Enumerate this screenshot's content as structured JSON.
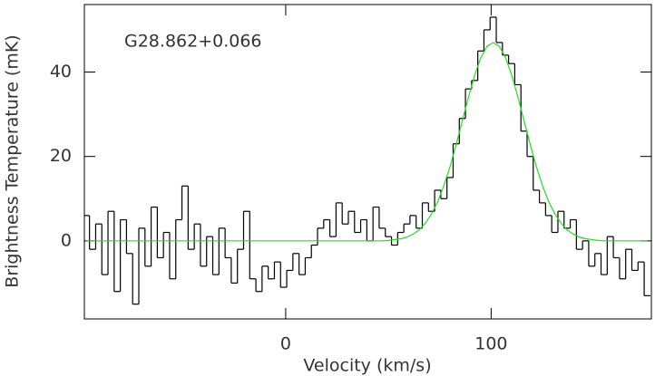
{
  "chart_data": {
    "type": "step",
    "annotation": "G28.862+0.066",
    "xlabel": "Velocity (km/s)",
    "ylabel": "Brightness Temperature (mK)",
    "x": [
      -97,
      -94,
      -91,
      -88,
      -85,
      -82,
      -79,
      -76,
      -73,
      -70,
      -67,
      -64,
      -61,
      -58,
      -55,
      -52,
      -49,
      -46,
      -43,
      -40,
      -37,
      -34,
      -31,
      -28,
      -25,
      -22,
      -19,
      -16,
      -13,
      -10,
      -7,
      -4,
      -1,
      2,
      5,
      8,
      11,
      14,
      17,
      20,
      23,
      26,
      29,
      32,
      35,
      38,
      41,
      44,
      47,
      50,
      53,
      56,
      59,
      62,
      65,
      68,
      71,
      74,
      77,
      80,
      83,
      86,
      89,
      92,
      95,
      98,
      101,
      104,
      107,
      110,
      113,
      116,
      119,
      122,
      125,
      128,
      131,
      134,
      137,
      140,
      143,
      146,
      149,
      152,
      155,
      158,
      161,
      164,
      167,
      170,
      173,
      176
    ],
    "series": [
      {
        "color": "#000000",
        "values": [
          6,
          -2,
          4,
          -8,
          7,
          -12,
          5,
          -3,
          -15,
          3,
          -6,
          8,
          -4,
          2,
          -9,
          5,
          13,
          -2,
          4,
          -6,
          1,
          -8,
          3,
          -4,
          -10,
          -2,
          7,
          -9,
          -12,
          -6,
          -9,
          -5,
          -11,
          -7,
          -3,
          -8,
          -4,
          -1,
          3,
          5,
          1,
          9,
          4,
          7,
          2,
          5,
          0,
          8,
          3,
          1,
          -1,
          2,
          4,
          6,
          3,
          9,
          7,
          12,
          10,
          15,
          23,
          29,
          36,
          38,
          45,
          50,
          53,
          47,
          44,
          42,
          37,
          26,
          20,
          12,
          9,
          6,
          2,
          7,
          3,
          5,
          -2,
          0,
          -6,
          -3,
          -8,
          1,
          -4,
          -9,
          -2,
          -7,
          -5,
          -13
        ]
      },
      {
        "color": "#22dd22",
        "values": [
          0,
          0,
          0,
          0,
          0,
          0,
          0,
          0,
          0,
          0,
          0,
          0,
          0,
          0,
          0,
          0,
          0,
          0,
          0,
          0,
          0,
          0,
          0,
          0,
          0,
          0,
          0,
          0,
          0,
          0,
          0,
          0,
          0,
          0,
          0,
          0,
          0,
          0,
          0,
          0,
          0,
          0,
          0,
          0,
          0,
          0,
          0,
          0,
          0,
          0.1,
          0.3,
          0.5,
          0.9,
          1.6,
          2.6,
          4.2,
          6.4,
          9.3,
          13.1,
          17.6,
          22.9,
          28.5,
          34.1,
          39.3,
          43.4,
          46.1,
          47,
          46.1,
          43.4,
          39.3,
          34.1,
          28.5,
          22.9,
          17.6,
          13.1,
          9.3,
          6.4,
          4.2,
          2.6,
          1.6,
          0.9,
          0.5,
          0.3,
          0.1,
          0,
          0,
          0,
          0,
          0,
          0,
          0,
          0
        ]
      }
    ],
    "xlim": [
      -98,
      178
    ],
    "ylim": [
      -18.5,
      56
    ],
    "xticks": [
      0,
      100
    ],
    "yticks": [
      0,
      20,
      40
    ]
  }
}
